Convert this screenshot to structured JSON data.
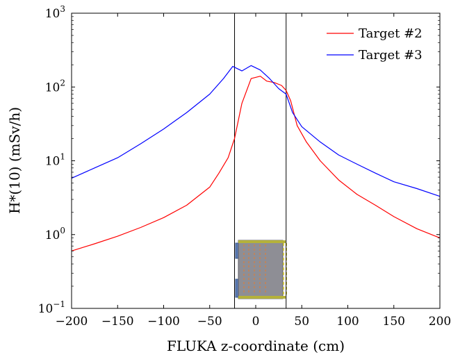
{
  "chart_data": {
    "type": "line",
    "title": "",
    "xlabel": "FLUKA z-coordinate (cm)",
    "ylabel": "H*(10) (mSv/h)",
    "xlim": [
      -200,
      200
    ],
    "ylim": [
      0.1,
      1000
    ],
    "yscale": "log",
    "grid": false,
    "legend_position": "top-right",
    "x_ticks": [
      -200,
      -150,
      -100,
      -50,
      0,
      50,
      100,
      150,
      200
    ],
    "x_tick_labels": [
      "−200",
      "−150",
      "−100",
      "−50",
      "0",
      "50",
      "100",
      "150",
      "200"
    ],
    "y_ticks": [
      0.1,
      1,
      10,
      100,
      1000
    ],
    "y_tick_labels": [
      {
        "base": "10",
        "exp": "−1"
      },
      {
        "base": "10",
        "exp": "0"
      },
      {
        "base": "10",
        "exp": "1"
      },
      {
        "base": "10",
        "exp": "2"
      },
      {
        "base": "10",
        "exp": "3"
      }
    ],
    "vertical_lines": [
      -23,
      33
    ],
    "series": [
      {
        "name": "Target #2",
        "color": "#ff0000",
        "x": [
          -200,
          -175,
          -150,
          -125,
          -100,
          -75,
          -50,
          -40,
          -30,
          -23,
          -15,
          -5,
          5,
          12,
          20,
          28,
          33,
          38,
          45,
          55,
          70,
          90,
          110,
          130,
          150,
          175,
          200
        ],
        "y": [
          0.6,
          0.75,
          0.95,
          1.25,
          1.7,
          2.5,
          4.4,
          6.8,
          11,
          20,
          60,
          130,
          140,
          120,
          115,
          105,
          90,
          65,
          30,
          18,
          10,
          5.5,
          3.5,
          2.5,
          1.75,
          1.2,
          0.9
        ]
      },
      {
        "name": "Target #3",
        "color": "#0000ff",
        "x": [
          -200,
          -175,
          -150,
          -125,
          -100,
          -75,
          -50,
          -35,
          -25,
          -15,
          -5,
          5,
          15,
          25,
          33,
          40,
          50,
          70,
          90,
          110,
          130,
          150,
          175,
          200
        ],
        "y": [
          5.8,
          8,
          11,
          17,
          27,
          45,
          80,
          130,
          190,
          165,
          195,
          170,
          130,
          95,
          80,
          45,
          29,
          18,
          12,
          9,
          6.8,
          5.2,
          4.2,
          3.3
        ]
      }
    ]
  }
}
